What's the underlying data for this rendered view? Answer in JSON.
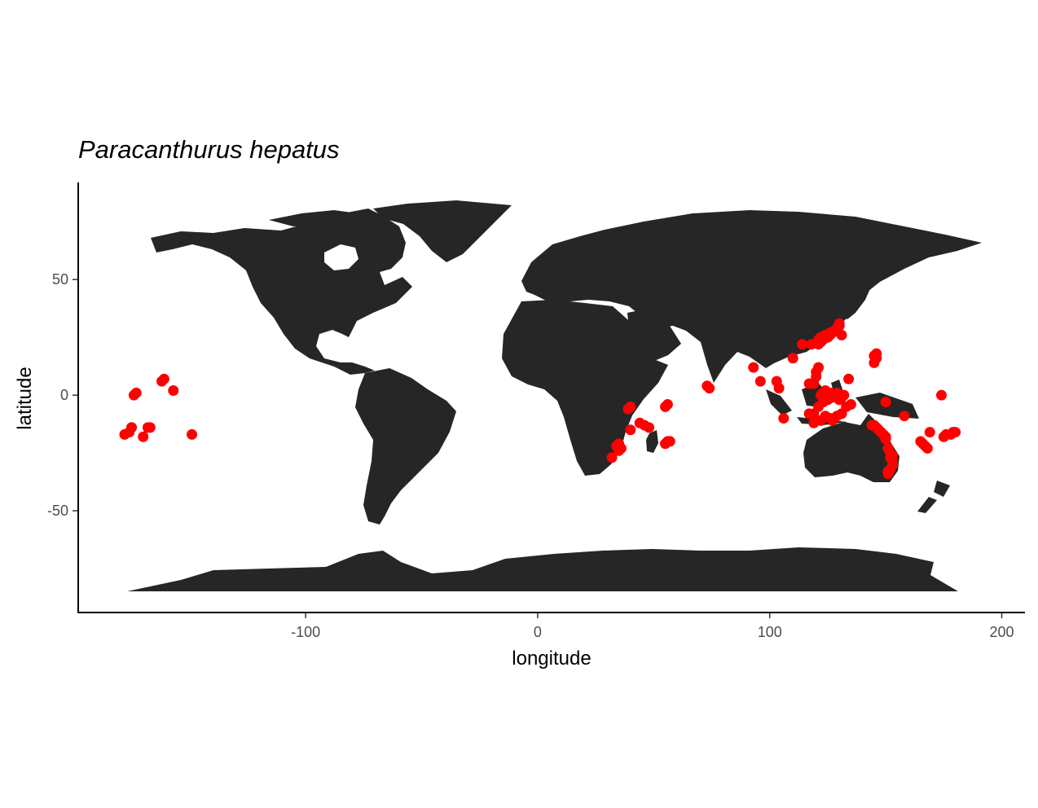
{
  "chart_data": {
    "type": "scatter",
    "title": "Paracanthurus hepatus",
    "xlabel": "longitude",
    "ylabel": "latitude",
    "xlim": [
      -198,
      210
    ],
    "ylim": [
      -94,
      92
    ],
    "xticks": [
      -100,
      0,
      100,
      200
    ],
    "yticks": [
      -50,
      0,
      50
    ],
    "grid": false,
    "legend": "none",
    "colors": {
      "land": "#262626",
      "points": "#ff0000",
      "axis": "#000000"
    },
    "series": [
      {
        "x": [
          -178,
          -176,
          -175,
          -174,
          -173,
          -175,
          -170,
          -168,
          -167,
          -162,
          -161,
          -157,
          -149,
          32,
          34,
          35,
          35,
          36,
          39,
          40,
          40,
          44,
          46,
          48,
          55,
          56,
          55,
          56,
          57,
          73,
          74,
          93,
          96,
          103,
          104,
          106,
          110,
          114,
          117,
          118,
          119,
          120,
          121,
          121,
          122,
          122,
          123,
          124,
          124,
          125,
          126,
          126,
          127,
          128,
          129,
          130,
          130,
          131,
          117,
          119,
          120,
          121,
          122,
          123,
          123,
          124,
          125,
          125,
          126,
          127,
          128,
          129,
          130,
          130,
          131,
          132,
          134,
          119,
          121,
          122,
          124,
          126,
          127,
          129,
          131,
          133,
          135,
          144,
          145,
          145,
          146,
          146,
          145,
          146,
          147,
          148,
          149,
          150,
          150,
          151,
          152,
          152,
          153,
          153,
          153,
          152,
          151,
          150,
          158,
          165,
          166,
          167,
          168,
          169,
          174,
          175,
          176,
          178,
          179,
          180,
          151
        ],
        "y": [
          -17,
          -16,
          -14,
          0,
          1,
          -14,
          -18,
          -14,
          -14,
          6,
          7,
          2,
          -17,
          -27,
          -22,
          -24,
          -21,
          -23,
          -6,
          -5,
          -15,
          -12,
          -13,
          -14,
          -5,
          -4,
          -21,
          -20,
          -20,
          4,
          3,
          12,
          6,
          6,
          3,
          -10,
          16,
          22,
          5,
          22,
          5,
          8,
          22,
          24,
          25,
          23,
          24,
          26,
          25,
          25,
          26,
          27,
          27,
          28,
          29,
          30,
          31,
          26,
          -8,
          -8,
          10,
          12,
          0,
          1,
          -3,
          2,
          -2,
          0,
          1,
          -1,
          0,
          1,
          -2,
          0,
          -1,
          0,
          7,
          -12,
          -5,
          -11,
          -9,
          -10,
          -11,
          -9,
          -8,
          -5,
          -4,
          -13,
          14,
          17,
          18,
          16,
          -13,
          -14,
          -15,
          -16,
          -17,
          -18,
          -19,
          -23,
          -25,
          -27,
          -26,
          -29,
          -30,
          -32,
          -33,
          -3,
          -9,
          -20,
          -21,
          -22,
          -23,
          -16,
          0,
          -18,
          -17,
          -17,
          -16,
          -16,
          -34
        ]
      }
    ]
  }
}
